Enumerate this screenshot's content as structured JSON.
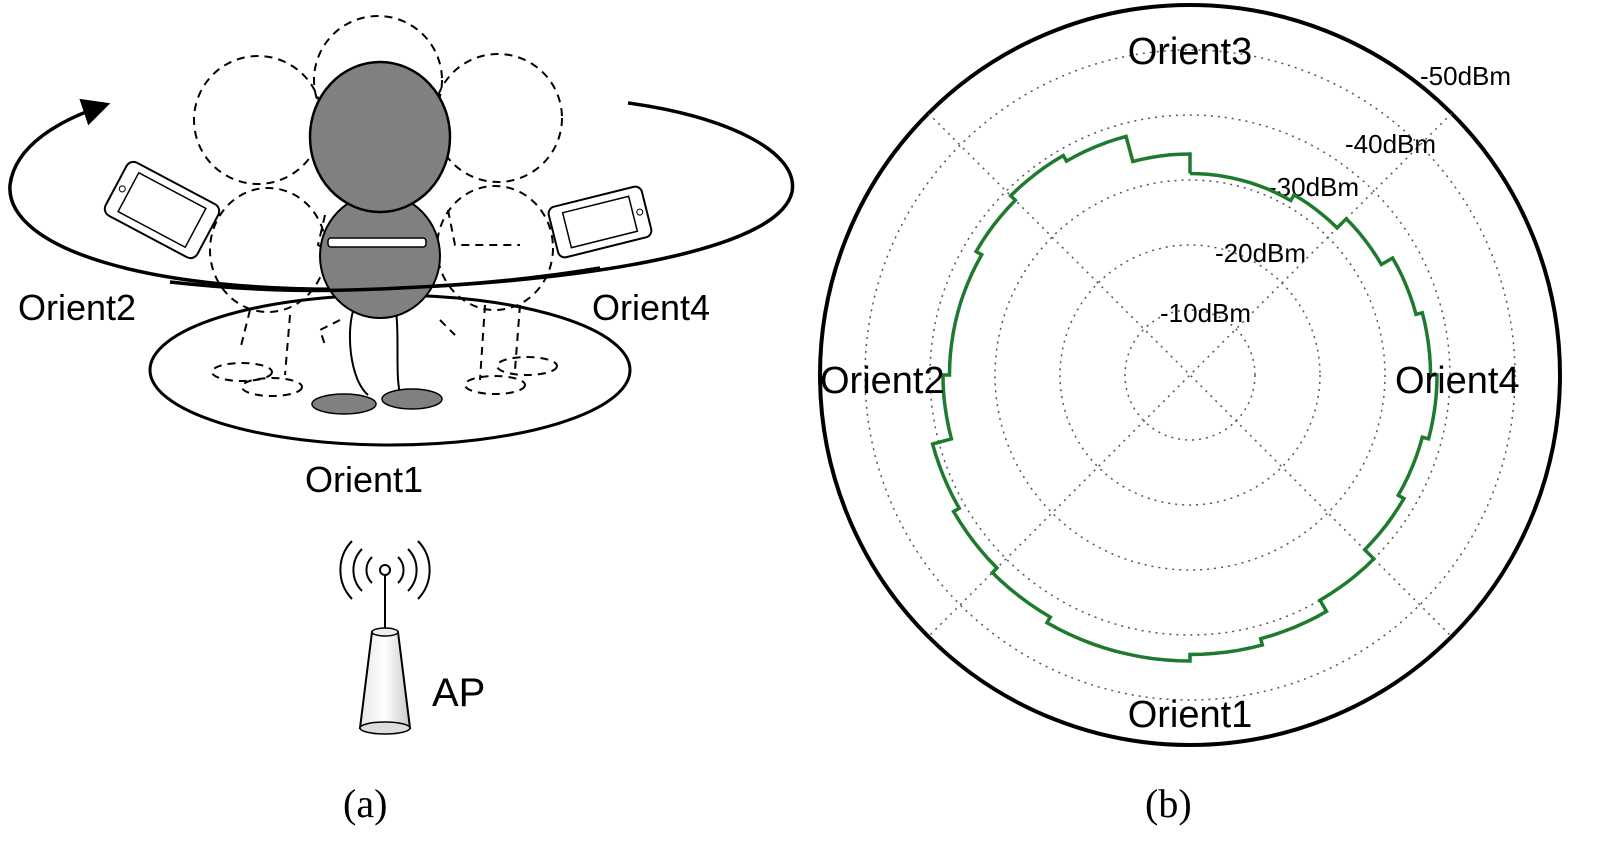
{
  "panel_a": {
    "caption": "(a)",
    "labels": {
      "orient1": "Orient1",
      "orient2": "Orient2",
      "orient4": "Orient4",
      "ap": "AP"
    },
    "icons": [
      "rotation-arrow-icon",
      "phone-icon",
      "wifi-signal-icon",
      "access-point-icon",
      "person-icon"
    ]
  },
  "panel_b": {
    "caption": "(b)",
    "chart_data": {
      "type": "polar",
      "radial_unit": "dBm",
      "rings": [
        "-10dBm",
        "-20dBm",
        "-30dBm",
        "-40dBm",
        "-50dBm"
      ],
      "ring_values": [
        -10,
        -20,
        -30,
        -40,
        -50
      ],
      "direction_labels": {
        "top": "Orient3",
        "left": "Orient2",
        "right": "Orient4",
        "bottom": "Orient1"
      },
      "grid": "dotted",
      "series": [
        {
          "color": "#1e7b2e",
          "angle_deg": [
            0,
            15,
            30,
            45,
            60,
            75,
            90,
            105,
            120,
            135,
            150,
            165,
            180,
            195,
            210,
            225,
            240,
            255,
            270,
            285,
            300,
            315,
            330,
            345
          ],
          "rssi_dbm": [
            -31,
            -31,
            -32,
            -34,
            -36,
            -37,
            -38,
            -37,
            -38,
            -40,
            -42,
            -43,
            -44,
            -44,
            -43,
            -42,
            -41,
            -38,
            -37,
            -37,
            -38,
            -39,
            -38,
            -34
          ]
        }
      ]
    }
  },
  "colors": {
    "line": "#000000",
    "person_fill": "#808080",
    "curve": "#1e7b2e"
  }
}
